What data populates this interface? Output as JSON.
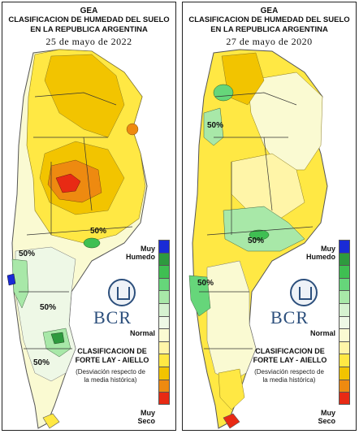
{
  "left": {
    "org": "GEA",
    "title_line1": "CLASIFICACION DE HUMEDAD DEL SUELO",
    "title_line2": "EN LA REPUBLICA ARGENTINA",
    "date": "25 de mayo de 2022",
    "pct_labels": [
      "50%",
      "50%",
      "50%",
      "50%"
    ]
  },
  "right": {
    "org": "GEA",
    "title_line1": "CLASIFICACION DE HUMEDAD DEL SUELO",
    "title_line2": "EN LA REPUBLICA ARGENTINA",
    "date": "27 de mayo de 2020",
    "pct_labels": [
      "50%",
      "50%",
      "50%"
    ]
  },
  "legend": {
    "very_wet": "Muy\nHumedo",
    "normal": "Normal",
    "very_dry": "Muy\nSeco",
    "colors": [
      "#1a2bd6",
      "#2e9a3e",
      "#3fbf52",
      "#66d67a",
      "#a8e8a8",
      "#d6f2d0",
      "#eef8e6",
      "#fafad2",
      "#fff5a8",
      "#ffe844",
      "#f2c400",
      "#ee8a10",
      "#e82a14"
    ]
  },
  "logo": {
    "brand": "BCR",
    "seal_text": "BOLSA DE COMERCIO DE ROSARIO"
  },
  "classification": {
    "line1": "CLASIFICACION DE",
    "line2": "FORTE LAY - AIELLO",
    "note1": "(Desviación respecto de",
    "note2": "la media histórica)"
  }
}
